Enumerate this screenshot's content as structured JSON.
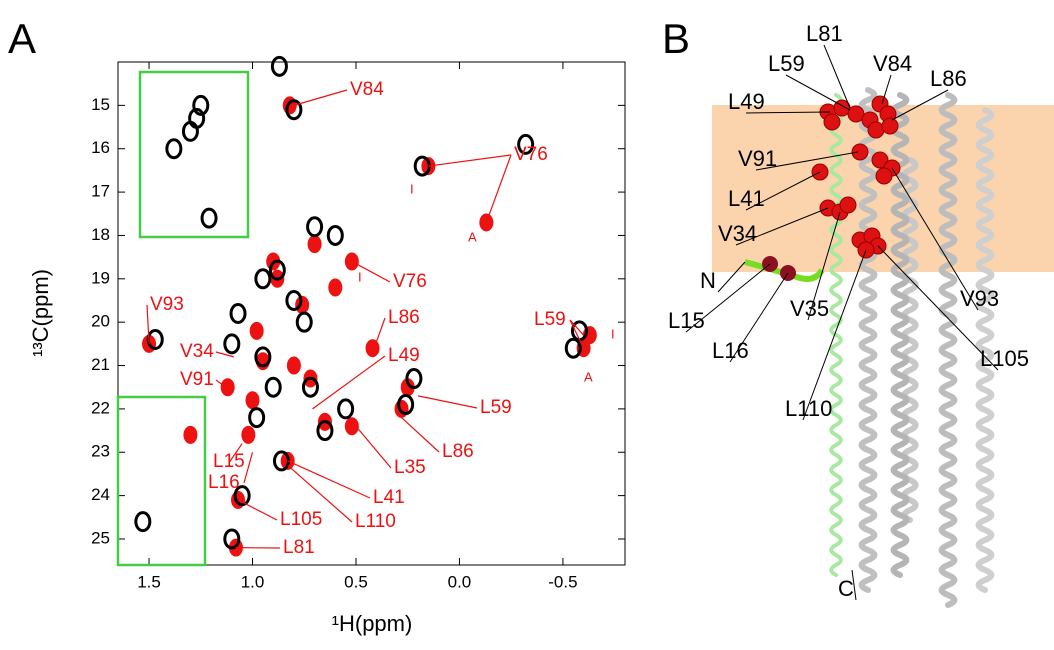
{
  "panel_labels": [
    "A",
    "B"
  ],
  "chart_data": {
    "type": "scatter",
    "x_label": "¹H(ppm)",
    "y_label": "¹³C(ppm)",
    "xlim": [
      1.65,
      -0.8
    ],
    "ylim": [
      14.0,
      25.6
    ],
    "xticks": [
      1.5,
      {
        "value": 1,
        "label": "1.0"
      },
      0.5,
      {
        "value": 0,
        "label": "0.0"
      },
      -0.5
    ],
    "yticks": [
      15,
      16,
      17,
      18,
      19,
      20,
      21,
      22,
      23,
      24,
      25
    ],
    "series": [
      {
        "color": "#ee1111",
        "x": [
          0.82,
          0.15,
          -0.13,
          0.52,
          -0.6,
          -0.63,
          1.5,
          1.12,
          1.3,
          0.42,
          0.25,
          0.28,
          0.52,
          0.83,
          1.07,
          1.08,
          0.88,
          0.98,
          0.7,
          0.8,
          0.65,
          1.0,
          0.9,
          0.76,
          1.02,
          0.6,
          0.95,
          0.72
        ],
        "values": [
          15.0,
          16.4,
          17.7,
          18.6,
          20.6,
          20.3,
          20.5,
          21.5,
          22.6,
          20.6,
          21.5,
          22.0,
          22.4,
          23.2,
          24.1,
          25.2,
          19.0,
          20.2,
          18.2,
          21.0,
          22.3,
          21.8,
          18.6,
          19.6,
          22.6,
          19.2,
          20.9,
          21.3
        ]
      },
      {
        "color": "#000000",
        "x": [
          0.8,
          0.18,
          -0.58,
          -0.55,
          1.38,
          1.27,
          1.21,
          1.53,
          1.05,
          1.1,
          0.86,
          0.22,
          0.26,
          1.47,
          0.95,
          0.88,
          0.7,
          0.6,
          1.07,
          0.95,
          0.9,
          0.75,
          0.65,
          0.55,
          1.1,
          0.8,
          0.98,
          0.72,
          -0.32,
          0.87,
          1.25,
          1.3
        ],
        "values": [
          15.1,
          16.4,
          20.2,
          20.6,
          16.0,
          15.3,
          17.6,
          24.6,
          24.0,
          25.0,
          23.2,
          21.3,
          21.9,
          20.4,
          19.0,
          18.8,
          17.8,
          18.0,
          19.8,
          20.8,
          21.5,
          20.0,
          22.5,
          22.0,
          20.5,
          19.5,
          22.2,
          21.5,
          15.9,
          14.1,
          15.0,
          15.6
        ]
      }
    ],
    "annotations": [
      {
        "text": "V84",
        "points": [
          [
            0.8,
            15.0
          ]
        ]
      },
      {
        "text": "V76",
        "points": [
          [
            0.15,
            16.4
          ],
          [
            -0.13,
            17.7
          ]
        ]
      },
      {
        "text": "V76",
        "points": [
          [
            0.52,
            18.6
          ]
        ]
      },
      {
        "text": "L59",
        "points": [
          [
            -0.6,
            20.3
          ],
          [
            -0.6,
            20.6
          ]
        ]
      },
      {
        "text": "V93",
        "points": [
          [
            1.5,
            20.5
          ]
        ]
      },
      {
        "text": "V34",
        "points": [
          [
            1.09,
            20.8
          ]
        ]
      },
      {
        "text": "V91",
        "points": [
          [
            1.1,
            21.6
          ]
        ]
      },
      {
        "text": "L86",
        "points": [
          [
            0.42,
            20.7
          ]
        ]
      },
      {
        "text": "L49",
        "points": [
          [
            0.71,
            22.0
          ]
        ]
      },
      {
        "text": "L59",
        "points": [
          [
            0.2,
            21.7
          ]
        ]
      },
      {
        "text": "L86",
        "points": [
          [
            0.28,
            22.2
          ]
        ]
      },
      {
        "text": "L35",
        "points": [
          [
            0.5,
            22.4
          ]
        ]
      },
      {
        "text": "L15",
        "points": [
          [
            1.05,
            22.8
          ]
        ]
      },
      {
        "text": "L16",
        "points": [
          [
            1.0,
            23.0
          ]
        ]
      },
      {
        "text": "L41",
        "points": [
          [
            0.83,
            23.2
          ]
        ]
      },
      {
        "text": "L110",
        "points": [
          [
            0.83,
            23.3
          ]
        ]
      },
      {
        "text": "L105",
        "points": [
          [
            1.07,
            24.1
          ]
        ]
      },
      {
        "text": "L81",
        "points": [
          [
            1.08,
            25.2
          ]
        ]
      },
      {
        "text": "I",
        "points": []
      },
      {
        "text": "A",
        "points": []
      },
      {
        "text": "I",
        "points": []
      },
      {
        "text": "I",
        "points": []
      },
      {
        "text": "A",
        "points": []
      }
    ]
  },
  "structure": {
    "labels": [
      "L81",
      "L59",
      "V84",
      "L86",
      "L49",
      "V91",
      "L41",
      "V34",
      "N",
      "L15",
      "L16",
      "V35",
      "V93",
      "L105",
      "L110",
      "C"
    ]
  }
}
